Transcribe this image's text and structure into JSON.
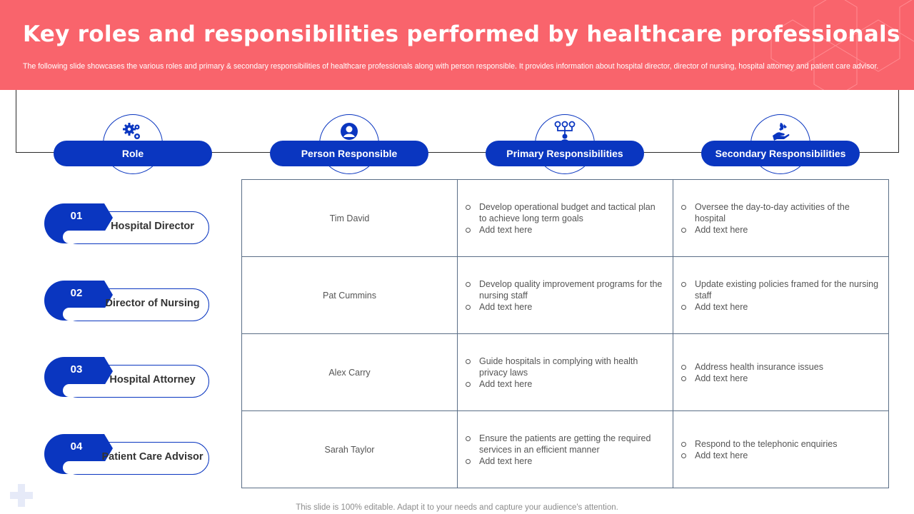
{
  "header": {
    "title": "Key roles and responsibilities performed by healthcare professionals",
    "subtitle": "The following slide showcases the various roles and primary & secondary responsibilities of healthcare professionals along with person responsible. It provides information about hospital director, director of nursing, hospital attorney and patient care advisor.",
    "accent_color": "#f9646c"
  },
  "columns": [
    {
      "label": "Role",
      "icon": "gears-icon"
    },
    {
      "label": "Person Responsible",
      "icon": "user-icon"
    },
    {
      "label": "Primary Responsibilities",
      "icon": "hierarchy-icon"
    },
    {
      "label": "Secondary Responsibilities",
      "icon": "hand-care-icon"
    }
  ],
  "brand_color": "#0a36c0",
  "roles": [
    {
      "number": "01",
      "title": "Hospital Director",
      "person": "Tim David",
      "primary": [
        "Develop operational budget and tactical plan to achieve long term goals",
        "Add text here"
      ],
      "secondary": [
        "Oversee the day-to-day activities of the hospital",
        "Add text here"
      ]
    },
    {
      "number": "02",
      "title": "Director of Nursing",
      "person": "Pat Cummins",
      "primary": [
        "Develop quality improvement programs for the nursing staff",
        "Add text here"
      ],
      "secondary": [
        "Update existing policies framed for the nursing staff",
        "Add text here"
      ]
    },
    {
      "number": "03",
      "title": "Hospital Attorney",
      "person": "Alex Carry",
      "primary": [
        "Guide hospitals in complying with health privacy laws",
        "Add text here"
      ],
      "secondary": [
        "Address health insurance issues",
        "Add text here"
      ]
    },
    {
      "number": "04",
      "title": "Patient Care Advisor",
      "person": "Sarah Taylor",
      "primary": [
        "Ensure the patients are getting the required services in an efficient manner",
        "Add text here"
      ],
      "secondary": [
        "Respond to the telephonic enquiries",
        "Add text here"
      ]
    }
  ],
  "footer": "This slide is 100% editable. Adapt it to your needs and capture your audience's attention."
}
